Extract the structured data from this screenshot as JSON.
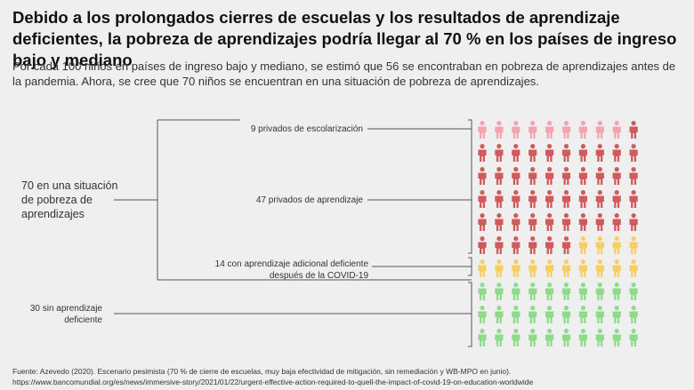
{
  "chart_data": {
    "type": "pictograph",
    "title": "Debido a los prolongados cierres de escuelas y los resultados de aprendizaje deficientes, la pobreza de aprendizajes podría llegar al 70 % en los países de ingreso bajo y mediano",
    "subtitle": "Por cada 100 niños en países de ingreso bajo y mediano, se estimó que 56 se encontraban en pobreza de aprendizajes antes de la pandemia. Ahora, se cree que 70 niños se encuentran en una situación de pobreza de aprendizajes.",
    "total_label": "70 en una situación de pobreza de aprendizajes",
    "series": [
      {
        "name": "9 privados de escolarización",
        "value": 9,
        "color": "#f4a3b1"
      },
      {
        "name": "47 privados de aprendizaje",
        "value": 47,
        "color": "#d05a5c"
      },
      {
        "name": "14 con aprendizaje adicional deficiente después de la COVID-19",
        "value": 14,
        "color": "#f6cf62"
      },
      {
        "name": "30 sin aprendizaje deficiente",
        "value": 30,
        "color": "#8fdb8b"
      }
    ],
    "source": "Fuente: Azevedo (2020). Escenario pesimista (70 % de cierre de escuelas, muy baja efectividad de mitigación, sin remediación y WB-MPO en junio).",
    "url": "https://www.bancomundial.org/es/news/immersive-story/2021/01/22/urgent-effective-action-required-to-quell-the-impact-of-covid-19-on-education-worldwide"
  }
}
